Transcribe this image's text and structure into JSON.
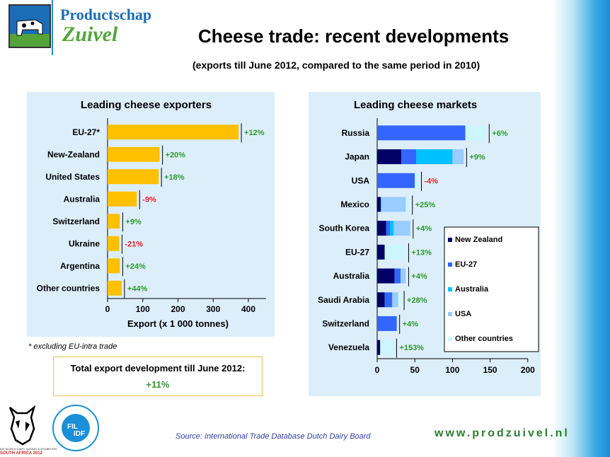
{
  "header": {
    "logo_line1": "Productschap",
    "logo_line2": "Zuivel",
    "title": "Cheese trade: recent developments",
    "subtitle": "(exports till June 2012, compared to the same period in 2010)"
  },
  "chart_data": [
    {
      "type": "bar",
      "orientation": "horizontal",
      "title": "Leading cheese exporters",
      "xlabel": "Export (x 1 000 tonnes)",
      "xlim": [
        0,
        450
      ],
      "xticks": [
        0,
        100,
        200,
        300,
        400
      ],
      "categories": [
        "EU-27*",
        "New-Zealand",
        "United States",
        "Australia",
        "Switzerland",
        "Ukraine",
        "Argentina",
        "Other countries"
      ],
      "values": [
        372,
        148,
        145,
        83,
        35,
        33,
        35,
        40
      ],
      "changes": [
        "+12%",
        "+20%",
        "+18%",
        "-9%",
        "+9%",
        "-21%",
        "+24%",
        "+44%"
      ],
      "color": "#ffc000"
    },
    {
      "type": "bar",
      "orientation": "horizontal",
      "stacked": true,
      "title": "Leading cheese markets",
      "xlim": [
        0,
        200
      ],
      "xticks": [
        0,
        50,
        100,
        150,
        200
      ],
      "legend_position": "center-right",
      "categories": [
        "Russia",
        "Japan",
        "USA",
        "Mexico",
        "South Korea",
        "EU-27",
        "Australia",
        "Saudi Arabia",
        "Switzerland",
        "Venezuela"
      ],
      "series": [
        {
          "name": "New Zealand",
          "color": "#000066",
          "values": [
            0,
            32,
            0,
            5,
            12,
            10,
            23,
            10,
            0,
            4
          ]
        },
        {
          "name": "EU-27",
          "color": "#3366ff",
          "values": [
            117,
            20,
            50,
            0,
            5,
            0,
            8,
            10,
            26,
            0
          ]
        },
        {
          "name": "Australia",
          "color": "#00c0ff",
          "values": [
            0,
            48,
            0,
            0,
            5,
            0,
            0,
            0,
            0,
            0
          ]
        },
        {
          "name": "USA",
          "color": "#99ccff",
          "values": [
            0,
            15,
            0,
            33,
            22,
            0,
            7,
            8,
            0,
            0
          ]
        },
        {
          "name": "Other countries",
          "color": "#ccf6ff",
          "values": [
            28,
            0,
            5,
            5,
            0,
            28,
            0,
            4,
            0,
            18
          ]
        }
      ],
      "changes": [
        "+6%",
        "+9%",
        "-4%",
        "+25%",
        "+4%",
        "+13%",
        "+4%",
        "+28%",
        "+4%",
        "+153%"
      ]
    }
  ],
  "footnote": "* excluding EU-intra trade",
  "total": {
    "label": "Total export development till June 2012:",
    "value": "+11%"
  },
  "source": "Source: International Trade Database Dutch Dairy Board",
  "website": "www.prodzuivel.nl",
  "logos": {
    "summit_line1": "IDF WORLD DAIRY SUMMIT & EXHIBITION",
    "summit_line2": "SOUTH AFRICA 2012",
    "fil": "FIL",
    "idf": "IDF"
  },
  "colors": {
    "positive": "#2e9a2e",
    "negative": "#e8202a"
  }
}
